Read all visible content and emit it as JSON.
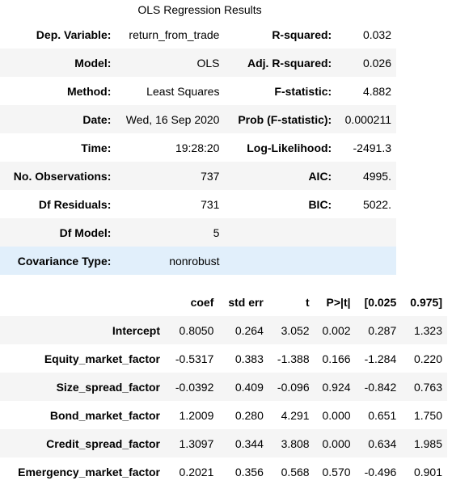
{
  "caption": "OLS Regression Results",
  "summary": [
    {
      "k1": "Dep. Variable:",
      "v1": "return_from_trade",
      "k2": "R-squared:",
      "v2": "0.032"
    },
    {
      "k1": "Model:",
      "v1": "OLS",
      "k2": "Adj. R-squared:",
      "v2": "0.026"
    },
    {
      "k1": "Method:",
      "v1": "Least Squares",
      "k2": "F-statistic:",
      "v2": "4.882"
    },
    {
      "k1": "Date:",
      "v1": "Wed, 16 Sep 2020",
      "k2": "Prob (F-statistic):",
      "v2": "0.000211"
    },
    {
      "k1": "Time:",
      "v1": "19:28:20",
      "k2": "Log-Likelihood:",
      "v2": "-2491.3"
    },
    {
      "k1": "No. Observations:",
      "v1": "737",
      "k2": "AIC:",
      "v2": "4995."
    },
    {
      "k1": "Df Residuals:",
      "v1": "731",
      "k2": "BIC:",
      "v2": "5022."
    },
    {
      "k1": "Df Model:",
      "v1": "5",
      "k2": "",
      "v2": ""
    },
    {
      "k1": "Covariance Type:",
      "v1": "nonrobust",
      "k2": "",
      "v2": ""
    }
  ],
  "coef_headers": [
    "",
    "coef",
    "std err",
    "t",
    "P>|t|",
    "[0.025",
    "0.975]"
  ],
  "coef_rows": [
    {
      "name": "Intercept",
      "coef": "0.8050",
      "se": "0.264",
      "t": "3.052",
      "p": "0.002",
      "lo": "0.287",
      "hi": "1.323"
    },
    {
      "name": "Equity_market_factor",
      "coef": "-0.5317",
      "se": "0.383",
      "t": "-1.388",
      "p": "0.166",
      "lo": "-1.284",
      "hi": "0.220"
    },
    {
      "name": "Size_spread_factor",
      "coef": "-0.0392",
      "se": "0.409",
      "t": "-0.096",
      "p": "0.924",
      "lo": "-0.842",
      "hi": "0.763"
    },
    {
      "name": "Bond_market_factor",
      "coef": "1.2009",
      "se": "0.280",
      "t": "4.291",
      "p": "0.000",
      "lo": "0.651",
      "hi": "1.750"
    },
    {
      "name": "Credit_spread_factor",
      "coef": "1.3097",
      "se": "0.344",
      "t": "3.808",
      "p": "0.000",
      "lo": "0.634",
      "hi": "1.985"
    },
    {
      "name": "Emergency_market_factor",
      "coef": "0.2021",
      "se": "0.356",
      "t": "0.568",
      "p": "0.570",
      "lo": "-0.496",
      "hi": "0.901"
    }
  ]
}
